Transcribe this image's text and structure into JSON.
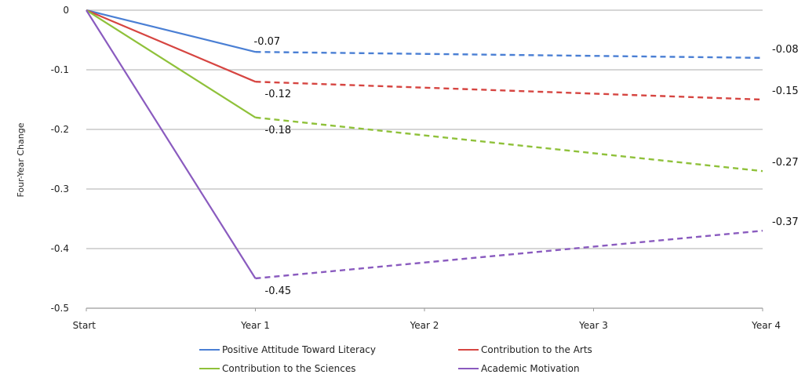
{
  "chart_data": {
    "type": "line",
    "title": "",
    "xlabel": "",
    "ylabel": "Four-Year Change",
    "categories": [
      "Start",
      "Year 1",
      "Year 2",
      "Year 3",
      "Year 4"
    ],
    "ylim": [
      -0.5,
      0
    ],
    "yticks": [
      0,
      -0.1,
      -0.2,
      -0.3,
      -0.4,
      -0.5
    ],
    "ytick_labels": [
      "0",
      "-0.1",
      "-0.2",
      "-0.3",
      "-0.4",
      "-0.5"
    ],
    "grid": true,
    "legend_position": "bottom",
    "series": [
      {
        "name": "Positive Attitude Toward Literacy",
        "color": "#4a7fd4",
        "values": [
          0,
          -0.07,
          -0.0725,
          -0.0775,
          -0.08
        ],
        "solid_through": "Year 1",
        "dashed_from": "Year 1",
        "labels": [
          {
            "category": "Year 1",
            "text": "-0.07",
            "position": "above"
          },
          {
            "category": "Year 4",
            "text": "-0.08",
            "position": "right"
          }
        ]
      },
      {
        "name": "Contribution to the Arts",
        "color": "#d64541",
        "values": [
          0,
          -0.12,
          -0.13,
          -0.14,
          -0.15
        ],
        "solid_through": "Year 1",
        "dashed_from": "Year 1",
        "labels": [
          {
            "category": "Year 1",
            "text": "-0.12",
            "position": "below"
          },
          {
            "category": "Year 4",
            "text": "-0.15",
            "position": "right"
          }
        ]
      },
      {
        "name": "Contribution to the Sciences",
        "color": "#8fc13a",
        "values": [
          0,
          -0.18,
          -0.21,
          -0.24,
          -0.27
        ],
        "solid_through": "Year 1",
        "dashed_from": "Year 1",
        "labels": [
          {
            "category": "Year 1",
            "text": "-0.18",
            "position": "below"
          },
          {
            "category": "Year 4",
            "text": "-0.27",
            "position": "right"
          }
        ]
      },
      {
        "name": "Academic Motivation",
        "color": "#8a5bbf",
        "values": [
          0,
          -0.45,
          -0.42,
          -0.39,
          -0.37
        ],
        "solid_through": "Year 1",
        "dashed_from": "Year 1",
        "labels": [
          {
            "category": "Year 1",
            "text": "-0.45",
            "position": "below"
          },
          {
            "category": "Year 4",
            "text": "-0.37",
            "position": "right"
          }
        ]
      }
    ],
    "legend_order": [
      "Positive Attitude Toward Literacy",
      "Contribution to the Arts",
      "Contribution to the Sciences",
      "Academic Motivation"
    ]
  }
}
